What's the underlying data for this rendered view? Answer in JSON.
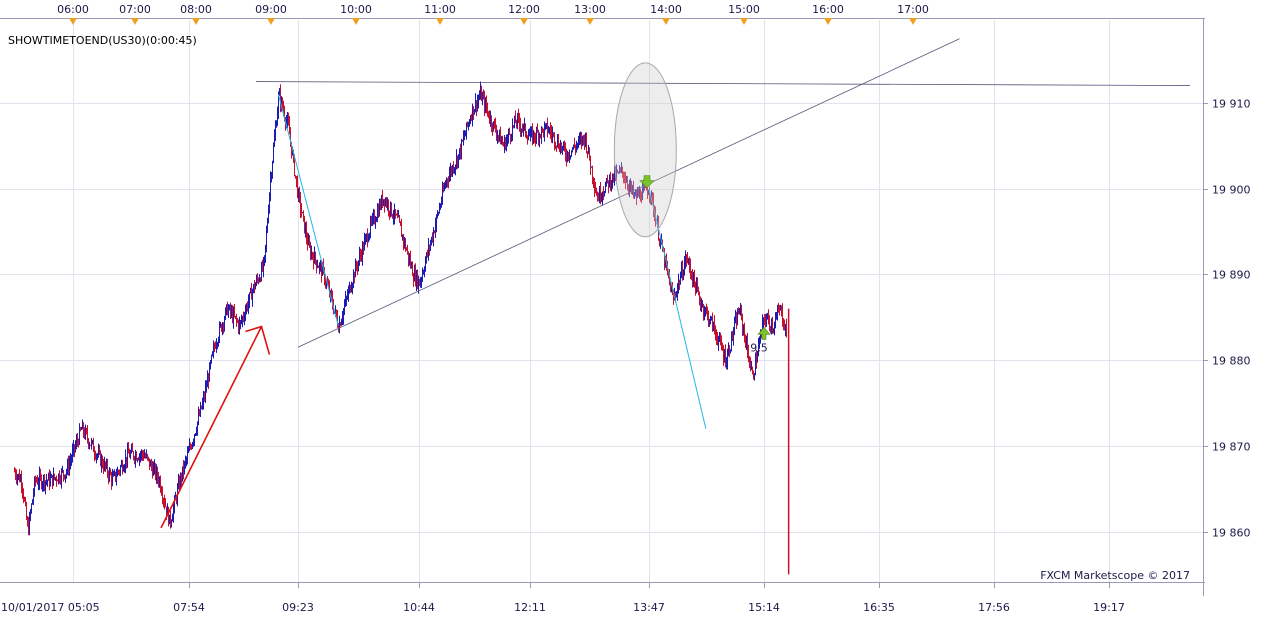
{
  "indicator_label": "SHOWTIMETOEND(US30)(0:00:45)",
  "credit": "FXCM Marketscope © 2017",
  "colors": {
    "background": "#ffffff",
    "grid": "#e3e3ee",
    "up_candle": "#1c1cb4",
    "down_candle": "#c8102e",
    "trendline": "#55557a",
    "cyan_line": "#22b8e6",
    "arrow": "#dd1111",
    "session_marker": "#f0a020",
    "signal_arrow": "#7cc22a"
  },
  "chart_data": {
    "type": "candlestick",
    "instrument": "US30",
    "ylim": [
      19855,
      19918
    ],
    "yticks": [
      19860,
      19870,
      19880,
      19890,
      19900,
      19910
    ],
    "ytick_labels": [
      "19 860",
      "19 870",
      "19 880",
      "19 890",
      "19 900",
      "19 910"
    ],
    "bottom_time_labels": [
      "10/01/2017 05:05",
      "07:54",
      "09:23",
      "10:44",
      "12:11",
      "13:47",
      "15:14",
      "16:35",
      "17:56",
      "19:17"
    ],
    "top_session_labels": [
      "06:00",
      "07:00",
      "08:00",
      "09:00",
      "10:00",
      "11:00",
      "12:00",
      "13:00",
      "14:00",
      "15:00",
      "16:00",
      "17:00"
    ],
    "price_path": [
      [
        "05:05",
        19867
      ],
      [
        "05:12",
        19866
      ],
      [
        "05:18",
        19860
      ],
      [
        "05:25",
        19866
      ],
      [
        "05:40",
        19866
      ],
      [
        "05:55",
        19867
      ],
      [
        "06:10",
        19872
      ],
      [
        "06:25",
        19869
      ],
      [
        "06:40",
        19866
      ],
      [
        "06:55",
        19869
      ],
      [
        "07:10",
        19869
      ],
      [
        "07:25",
        19866
      ],
      [
        "07:35",
        19861
      ],
      [
        "07:45",
        19866
      ],
      [
        "07:55",
        19870
      ],
      [
        "08:05",
        19875
      ],
      [
        "08:15",
        19882
      ],
      [
        "08:25",
        19886
      ],
      [
        "08:35",
        19884
      ],
      [
        "08:45",
        19888
      ],
      [
        "08:55",
        19891
      ],
      [
        "09:00",
        19901
      ],
      [
        "09:07",
        19911
      ],
      [
        "09:15",
        19907
      ],
      [
        "09:23",
        19899
      ],
      [
        "09:30",
        19893
      ],
      [
        "09:40",
        19890
      ],
      [
        "09:50",
        19884
      ],
      [
        "10:00",
        19890
      ],
      [
        "10:10",
        19895
      ],
      [
        "10:20",
        19899
      ],
      [
        "10:30",
        19896
      ],
      [
        "10:40",
        19890
      ],
      [
        "10:44",
        19889
      ],
      [
        "10:55",
        19895
      ],
      [
        "11:05",
        19901
      ],
      [
        "11:15",
        19904
      ],
      [
        "11:25",
        19909
      ],
      [
        "11:32",
        19911
      ],
      [
        "11:40",
        19908
      ],
      [
        "11:50",
        19905
      ],
      [
        "12:00",
        19908
      ],
      [
        "12:11",
        19906
      ],
      [
        "12:25",
        19907
      ],
      [
        "12:40",
        19904
      ],
      [
        "12:55",
        19906
      ],
      [
        "13:05",
        19899
      ],
      [
        "13:15",
        19901
      ],
      [
        "13:25",
        19902
      ],
      [
        "13:35",
        19899
      ],
      [
        "13:47",
        19900
      ],
      [
        "13:55",
        19894
      ],
      [
        "14:05",
        19887
      ],
      [
        "14:15",
        19892
      ],
      [
        "14:25",
        19887
      ],
      [
        "14:35",
        19884
      ],
      [
        "14:45",
        19880
      ],
      [
        "14:55",
        19886
      ],
      [
        "15:05",
        19878
      ],
      [
        "15:14",
        19885
      ],
      [
        "15:20",
        19884
      ],
      [
        "15:25",
        19886
      ],
      [
        "15:30",
        19883
      ],
      [
        "15:31",
        19855
      ]
    ],
    "horizontal_line": 19912.5,
    "trendline": [
      [
        "09:23",
        19881.5
      ],
      [
        "17:00",
        19917.5
      ]
    ],
    "cyan_lines": [
      [
        [
          "09:07",
          19911
        ],
        [
          "09:50",
          19884
        ]
      ],
      [
        [
          "13:47",
          19900
        ],
        [
          "14:30",
          19872
        ]
      ]
    ],
    "annotations": [
      {
        "type": "ellipse",
        "center": [
          "13:40",
          19905
        ],
        "text": ""
      },
      {
        "type": "arrow",
        "from": [
          "07:54",
          19861
        ],
        "to": [
          "08:45",
          19884.5
        ],
        "text": ""
      },
      {
        "type": "signal-down",
        "at": [
          "13:47",
          19900
        ],
        "text": ""
      },
      {
        "type": "signal-up",
        "at": [
          "15:14",
          19883
        ],
        "text": "9,5"
      }
    ]
  }
}
